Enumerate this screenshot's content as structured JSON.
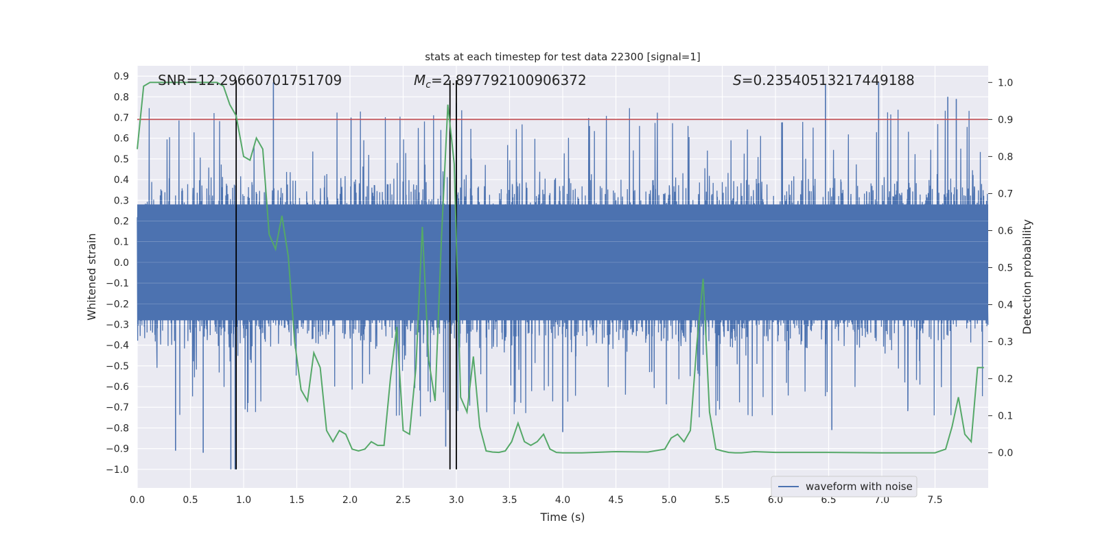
{
  "chart_data": {
    "type": "line",
    "title": "stats at each timestep for test data 22300 [signal=1]",
    "xlabel": "Time (s)",
    "ylabel_left": "Whitened strain",
    "ylabel_right": "Detection probability",
    "xlim": [
      0.0,
      8.0
    ],
    "ylim_left": [
      -1.09,
      0.95
    ],
    "ylim_right": [
      -0.095,
      1.045
    ],
    "x_ticks": [
      0.0,
      0.5,
      1.0,
      1.5,
      2.0,
      2.5,
      3.0,
      3.5,
      4.0,
      4.5,
      5.0,
      5.5,
      6.0,
      6.5,
      7.0,
      7.5
    ],
    "x_tick_labels": [
      "0.0",
      "0.5",
      "1.0",
      "1.5",
      "2.0",
      "2.5",
      "3.0",
      "3.5",
      "4.0",
      "4.5",
      "5.0",
      "5.5",
      "6.0",
      "6.5",
      "7.0",
      "7.5"
    ],
    "y_left_ticks": [
      0.9,
      0.8,
      0.7,
      0.6,
      0.5,
      0.4,
      0.3,
      0.2,
      0.1,
      0.0,
      -0.1,
      -0.2,
      -0.3,
      -0.4,
      -0.5,
      -0.6,
      -0.7,
      -0.8,
      -0.9,
      -1.0
    ],
    "y_left_tick_labels": [
      "0.9",
      "0.8",
      "0.7",
      "0.6",
      "0.5",
      "0.4",
      "0.3",
      "0.2",
      "0.1",
      "0.0",
      "−0.1",
      "−0.2",
      "−0.3",
      "−0.4",
      "−0.5",
      "−0.6",
      "−0.7",
      "−0.8",
      "−0.9",
      "−1.0"
    ],
    "y_right_ticks": [
      1.0,
      0.9,
      0.8,
      0.7,
      0.6,
      0.5,
      0.4,
      0.3,
      0.2,
      0.1,
      0.0
    ],
    "y_right_tick_labels": [
      "1.0",
      "0.9",
      "0.8",
      "0.7",
      "0.6",
      "0.5",
      "0.4",
      "0.3",
      "0.2",
      "0.1",
      "0.0"
    ],
    "grid": true,
    "legend": {
      "position": "lower-right",
      "entries": [
        "waveform with noise"
      ]
    },
    "annotations": {
      "snr": "SNR=12.29660701751709",
      "chirp_mass_symbol": "M",
      "chirp_mass_subscript": "c",
      "chirp_mass_value": "=2.897792100906372",
      "score_symbol": "S",
      "score_value": "=0.23540513217449188"
    },
    "threshold_right": 0.9,
    "vertical_lines_x": [
      0.93,
      2.94,
      3.0
    ],
    "vertical_lines_y_range": [
      -1.0,
      0.88
    ],
    "waveform": {
      "name": "waveform with noise",
      "core_amplitude": 0.32,
      "spike_amplitude_range": [
        0.35,
        1.0
      ],
      "notable_peaks": [
        {
          "x": 0.36,
          "y": -0.91
        },
        {
          "x": 0.62,
          "y": -0.92
        },
        {
          "x": 0.88,
          "y": -1.0
        },
        {
          "x": 0.92,
          "y": -1.0
        },
        {
          "x": 1.28,
          "y": 0.87
        },
        {
          "x": 2.01,
          "y": 0.7
        },
        {
          "x": 2.9,
          "y": -0.89
        },
        {
          "x": 3.0,
          "y": 0.77
        },
        {
          "x": 4.0,
          "y": -0.82
        },
        {
          "x": 6.47,
          "y": 0.86
        },
        {
          "x": 6.53,
          "y": -0.81
        },
        {
          "x": 6.97,
          "y": 0.87
        },
        {
          "x": 7.62,
          "y": 0.8
        },
        {
          "x": 7.7,
          "y": 0.79
        }
      ]
    },
    "probability": {
      "name": "detection probability",
      "x": [
        0.0,
        0.06,
        0.12,
        0.18,
        0.25,
        0.31,
        0.37,
        0.43,
        0.5,
        0.56,
        0.62,
        0.68,
        0.75,
        0.81,
        0.87,
        0.93,
        1.0,
        1.06,
        1.12,
        1.18,
        1.24,
        1.3,
        1.36,
        1.42,
        1.48,
        1.54,
        1.6,
        1.66,
        1.72,
        1.78,
        1.84,
        1.9,
        1.96,
        2.02,
        2.08,
        2.14,
        2.2,
        2.26,
        2.32,
        2.38,
        2.44,
        2.5,
        2.56,
        2.62,
        2.68,
        2.74,
        2.8,
        2.86,
        2.92,
        2.98,
        3.04,
        3.1,
        3.16,
        3.22,
        3.28,
        3.34,
        3.4,
        3.46,
        3.52,
        3.58,
        3.64,
        3.7,
        3.76,
        3.82,
        3.88,
        3.94,
        4.0,
        4.06,
        4.12,
        4.18,
        4.5,
        4.8,
        4.96,
        5.02,
        5.08,
        5.14,
        5.2,
        5.26,
        5.32,
        5.38,
        5.44,
        5.5,
        5.56,
        5.62,
        5.68,
        5.8,
        6.0,
        6.5,
        7.0,
        7.3,
        7.5,
        7.6,
        7.66,
        7.72,
        7.78,
        7.84,
        7.9,
        7.96
      ],
      "y": [
        0.82,
        0.99,
        1.0,
        1.0,
        1.0,
        1.0,
        1.0,
        1.0,
        1.0,
        1.0,
        1.0,
        1.0,
        1.0,
        0.99,
        0.94,
        0.91,
        0.8,
        0.79,
        0.85,
        0.82,
        0.59,
        0.55,
        0.64,
        0.53,
        0.3,
        0.17,
        0.14,
        0.27,
        0.23,
        0.06,
        0.03,
        0.06,
        0.05,
        0.01,
        0.005,
        0.01,
        0.03,
        0.02,
        0.02,
        0.2,
        0.34,
        0.06,
        0.05,
        0.23,
        0.61,
        0.25,
        0.14,
        0.58,
        0.94,
        0.78,
        0.15,
        0.11,
        0.26,
        0.07,
        0.005,
        0.002,
        0.001,
        0.005,
        0.03,
        0.08,
        0.03,
        0.02,
        0.03,
        0.05,
        0.01,
        0.001,
        0.0,
        0.0,
        0.0,
        0.0,
        0.003,
        0.002,
        0.01,
        0.04,
        0.05,
        0.03,
        0.06,
        0.29,
        0.47,
        0.11,
        0.01,
        0.005,
        0.001,
        0.0,
        0.0,
        0.003,
        0.001,
        0.001,
        0.0,
        0.0,
        0.0,
        0.01,
        0.07,
        0.15,
        0.05,
        0.03,
        0.23,
        0.23
      ]
    },
    "colors": {
      "background": "#eaeaf2",
      "grid": "#ffffff",
      "waveform": "#4c72b0",
      "probability": "#55a868",
      "threshold": "#c44e52",
      "vertical_lines": "#000000"
    }
  }
}
